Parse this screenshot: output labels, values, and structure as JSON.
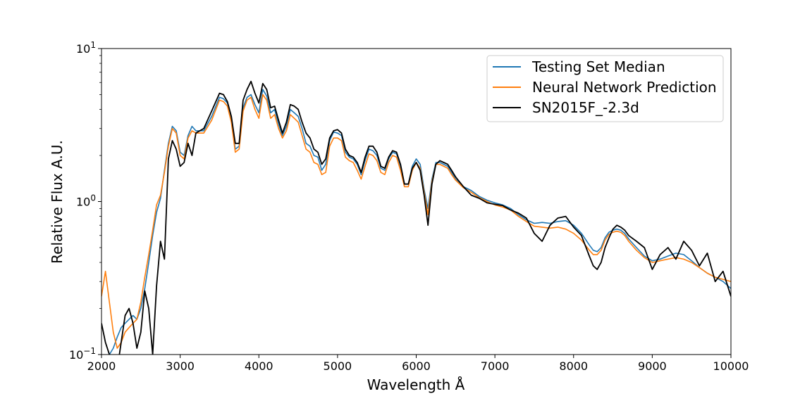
{
  "chart_data": {
    "type": "line",
    "xlabel": "Wavelength Å",
    "ylabel": "Relative Flux A.U.",
    "yscale": "log",
    "xlim": [
      2000,
      10000
    ],
    "ylim": [
      0.1,
      10
    ],
    "xticks": [
      2000,
      3000,
      4000,
      5000,
      6000,
      7000,
      8000,
      9000,
      10000
    ],
    "yticks": [
      {
        "value": 0.1,
        "base": "10",
        "exp": "−1"
      },
      {
        "value": 1,
        "base": "10",
        "exp": "0"
      },
      {
        "value": 10,
        "base": "10",
        "exp": "1"
      }
    ],
    "grid": false,
    "legend_position": "top-right",
    "series": [
      {
        "name": "Testing Set Median",
        "color": "#1f77b4",
        "x": [
          2000,
          2050,
          2100,
          2150,
          2200,
          2250,
          2300,
          2350,
          2400,
          2450,
          2500,
          2550,
          2600,
          2650,
          2700,
          2750,
          2800,
          2850,
          2900,
          2950,
          3000,
          3050,
          3100,
          3150,
          3200,
          3300,
          3400,
          3500,
          3550,
          3600,
          3650,
          3700,
          3750,
          3800,
          3850,
          3900,
          3950,
          4000,
          4050,
          4100,
          4150,
          4200,
          4250,
          4300,
          4350,
          4400,
          4450,
          4500,
          4550,
          4600,
          4650,
          4700,
          4750,
          4800,
          4850,
          4900,
          4950,
          5000,
          5050,
          5100,
          5150,
          5200,
          5250,
          5300,
          5350,
          5400,
          5450,
          5500,
          5550,
          5600,
          5650,
          5700,
          5750,
          5800,
          5850,
          5900,
          5950,
          6000,
          6050,
          6100,
          6150,
          6200,
          6250,
          6300,
          6350,
          6400,
          6450,
          6500,
          6600,
          6700,
          6800,
          6900,
          7000,
          7100,
          7200,
          7300,
          7400,
          7500,
          7600,
          7700,
          7800,
          7900,
          8000,
          8100,
          8200,
          8250,
          8300,
          8350,
          8400,
          8450,
          8500,
          8550,
          8600,
          8650,
          8700,
          8800,
          8900,
          9000,
          9100,
          9200,
          9300,
          9400,
          9500,
          9600,
          9700,
          9800,
          9900,
          10000
        ],
        "y": [
          0.08,
          0.09,
          0.1,
          0.11,
          0.13,
          0.15,
          0.16,
          0.17,
          0.18,
          0.17,
          0.2,
          0.27,
          0.4,
          0.6,
          0.85,
          1.05,
          1.6,
          2.4,
          3.1,
          2.9,
          2.1,
          2.0,
          2.7,
          3.1,
          2.9,
          2.9,
          3.6,
          4.8,
          4.7,
          4.4,
          3.5,
          2.2,
          2.3,
          4.1,
          4.8,
          5.0,
          4.3,
          3.8,
          5.4,
          4.9,
          3.8,
          4.0,
          3.2,
          2.7,
          3.1,
          4.0,
          3.8,
          3.6,
          3.0,
          2.4,
          2.3,
          2.0,
          1.95,
          1.6,
          1.75,
          2.5,
          2.85,
          2.8,
          2.7,
          2.1,
          1.95,
          1.9,
          1.75,
          1.5,
          1.85,
          2.2,
          2.15,
          2.0,
          1.65,
          1.6,
          1.9,
          2.1,
          2.05,
          1.7,
          1.3,
          1.3,
          1.7,
          1.9,
          1.75,
          1.2,
          0.9,
          1.4,
          1.8,
          1.8,
          1.75,
          1.7,
          1.55,
          1.4,
          1.25,
          1.18,
          1.08,
          1.02,
          0.98,
          0.95,
          0.9,
          0.82,
          0.76,
          0.72,
          0.73,
          0.72,
          0.74,
          0.75,
          0.7,
          0.62,
          0.52,
          0.48,
          0.47,
          0.5,
          0.58,
          0.63,
          0.65,
          0.66,
          0.65,
          0.62,
          0.57,
          0.5,
          0.44,
          0.41,
          0.42,
          0.44,
          0.46,
          0.45,
          0.41,
          0.37,
          0.34,
          0.32,
          0.3,
          0.27
        ]
      },
      {
        "name": "Neural Network Prediction",
        "color": "#ff7f0e",
        "x": [
          2000,
          2050,
          2100,
          2150,
          2200,
          2250,
          2300,
          2350,
          2400,
          2450,
          2500,
          2550,
          2600,
          2650,
          2700,
          2750,
          2800,
          2850,
          2900,
          2950,
          3000,
          3050,
          3100,
          3150,
          3200,
          3300,
          3400,
          3500,
          3550,
          3600,
          3650,
          3700,
          3750,
          3800,
          3850,
          3900,
          3950,
          4000,
          4050,
          4100,
          4150,
          4200,
          4250,
          4300,
          4350,
          4400,
          4450,
          4500,
          4550,
          4600,
          4650,
          4700,
          4750,
          4800,
          4850,
          4900,
          4950,
          5000,
          5050,
          5100,
          5150,
          5200,
          5250,
          5300,
          5350,
          5400,
          5450,
          5500,
          5550,
          5600,
          5650,
          5700,
          5750,
          5800,
          5850,
          5900,
          5950,
          6000,
          6050,
          6100,
          6150,
          6200,
          6250,
          6300,
          6350,
          6400,
          6450,
          6500,
          6600,
          6700,
          6800,
          6900,
          7000,
          7100,
          7200,
          7300,
          7400,
          7500,
          7600,
          7700,
          7800,
          7900,
          8000,
          8100,
          8200,
          8250,
          8300,
          8350,
          8400,
          8450,
          8500,
          8550,
          8600,
          8650,
          8700,
          8800,
          8900,
          9000,
          9100,
          9200,
          9300,
          9400,
          9500,
          9600,
          9700,
          9800,
          9900,
          10000
        ],
        "y": [
          0.24,
          0.35,
          0.22,
          0.14,
          0.11,
          0.12,
          0.14,
          0.15,
          0.16,
          0.17,
          0.22,
          0.32,
          0.45,
          0.65,
          0.95,
          1.1,
          1.55,
          2.3,
          3.0,
          2.8,
          2.0,
          1.9,
          2.6,
          2.9,
          2.8,
          2.8,
          3.4,
          4.6,
          4.5,
          4.2,
          3.3,
          2.1,
          2.2,
          3.9,
          4.6,
          4.8,
          4.0,
          3.5,
          5.0,
          4.6,
          3.5,
          3.7,
          3.0,
          2.6,
          2.9,
          3.7,
          3.5,
          3.3,
          2.7,
          2.2,
          2.1,
          1.8,
          1.75,
          1.5,
          1.55,
          2.3,
          2.6,
          2.6,
          2.5,
          1.95,
          1.85,
          1.8,
          1.6,
          1.4,
          1.7,
          2.05,
          2.0,
          1.85,
          1.55,
          1.5,
          1.8,
          2.0,
          1.95,
          1.6,
          1.25,
          1.25,
          1.6,
          1.8,
          1.65,
          1.15,
          0.82,
          1.35,
          1.75,
          1.75,
          1.7,
          1.65,
          1.5,
          1.38,
          1.23,
          1.15,
          1.06,
          1.0,
          0.95,
          0.92,
          0.88,
          0.8,
          0.74,
          0.69,
          0.68,
          0.67,
          0.68,
          0.66,
          0.62,
          0.56,
          0.48,
          0.45,
          0.45,
          0.48,
          0.56,
          0.61,
          0.63,
          0.64,
          0.63,
          0.6,
          0.55,
          0.48,
          0.43,
          0.4,
          0.41,
          0.42,
          0.43,
          0.42,
          0.4,
          0.37,
          0.34,
          0.32,
          0.31,
          0.3
        ]
      },
      {
        "name": "SN2015F_-2.3d",
        "color": "#000000",
        "x": [
          2000,
          2050,
          2100,
          2150,
          2200,
          2250,
          2300,
          2350,
          2400,
          2450,
          2500,
          2550,
          2600,
          2650,
          2700,
          2750,
          2800,
          2850,
          2900,
          2950,
          3000,
          3050,
          3100,
          3150,
          3200,
          3300,
          3400,
          3500,
          3550,
          3600,
          3650,
          3700,
          3750,
          3800,
          3850,
          3900,
          3950,
          4000,
          4050,
          4100,
          4150,
          4200,
          4250,
          4300,
          4350,
          4400,
          4450,
          4500,
          4550,
          4600,
          4650,
          4700,
          4750,
          4800,
          4850,
          4900,
          4950,
          5000,
          5050,
          5100,
          5150,
          5200,
          5250,
          5300,
          5350,
          5400,
          5450,
          5500,
          5550,
          5600,
          5650,
          5700,
          5750,
          5800,
          5850,
          5900,
          5950,
          6000,
          6050,
          6100,
          6150,
          6200,
          6250,
          6300,
          6350,
          6400,
          6450,
          6500,
          6600,
          6700,
          6800,
          6900,
          7000,
          7100,
          7200,
          7300,
          7400,
          7500,
          7600,
          7700,
          7800,
          7900,
          8000,
          8100,
          8200,
          8250,
          8300,
          8350,
          8400,
          8450,
          8500,
          8550,
          8600,
          8650,
          8700,
          8800,
          8900,
          9000,
          9100,
          9200,
          9300,
          9400,
          9500,
          9600,
          9700,
          9800,
          9900,
          10000
        ],
        "y": [
          0.16,
          0.12,
          0.1,
          0.09,
          0.08,
          0.12,
          0.18,
          0.2,
          0.16,
          0.11,
          0.14,
          0.26,
          0.2,
          0.1,
          0.28,
          0.55,
          0.42,
          1.9,
          2.5,
          2.2,
          1.7,
          1.8,
          2.4,
          2.0,
          2.8,
          3.0,
          3.9,
          5.1,
          5.0,
          4.5,
          3.6,
          2.4,
          2.4,
          4.6,
          5.4,
          6.1,
          5.1,
          4.4,
          5.9,
          5.4,
          4.1,
          4.2,
          3.4,
          2.8,
          3.3,
          4.3,
          4.2,
          4.0,
          3.3,
          2.8,
          2.6,
          2.2,
          2.1,
          1.75,
          1.9,
          2.6,
          2.9,
          2.95,
          2.8,
          2.2,
          2.0,
          1.95,
          1.8,
          1.55,
          1.95,
          2.3,
          2.3,
          2.1,
          1.7,
          1.65,
          1.95,
          2.15,
          2.1,
          1.75,
          1.3,
          1.3,
          1.65,
          1.8,
          1.6,
          1.1,
          0.7,
          1.3,
          1.75,
          1.85,
          1.8,
          1.75,
          1.6,
          1.45,
          1.25,
          1.1,
          1.05,
          0.98,
          0.96,
          0.94,
          0.88,
          0.84,
          0.78,
          0.62,
          0.55,
          0.7,
          0.78,
          0.8,
          0.68,
          0.6,
          0.44,
          0.38,
          0.36,
          0.4,
          0.5,
          0.58,
          0.66,
          0.7,
          0.68,
          0.65,
          0.6,
          0.55,
          0.5,
          0.36,
          0.45,
          0.5,
          0.42,
          0.55,
          0.48,
          0.38,
          0.46,
          0.3,
          0.35,
          0.24
        ]
      }
    ]
  }
}
